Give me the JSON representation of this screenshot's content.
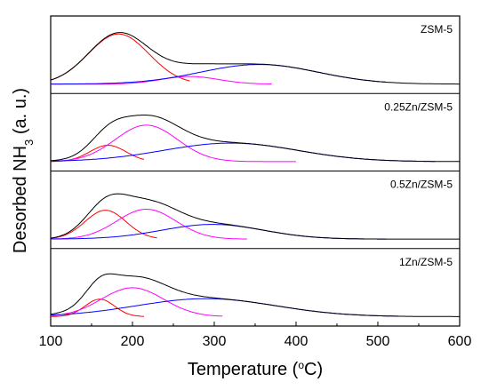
{
  "chart_data": {
    "type": "line",
    "xlabel": "Temperature (°C)",
    "ylabel": "Desorbed NH3 (a. u.)",
    "xlim": [
      100,
      600
    ],
    "xticks": [
      100,
      200,
      300,
      400,
      500,
      600
    ],
    "grid": false,
    "legend": "none",
    "series_colors": {
      "envelope": "#000000",
      "peak_low": "#ff0000",
      "peak_mid": "#ff00ff",
      "peak_high": "#0000ff"
    },
    "panels": [
      {
        "label": "ZSM-5",
        "baseline": 0.01,
        "fit_end": {
          "peak_low": 270,
          "peak_mid": 370,
          "peak_high": 510
        },
        "peaks": [
          {
            "role": "peak_low",
            "center": 183,
            "height": 0.92,
            "width": 37
          },
          {
            "role": "peak_mid",
            "center": 270,
            "height": 0.14,
            "width": 35
          },
          {
            "role": "peak_high",
            "center": 355,
            "height": 0.36,
            "width": 72
          }
        ]
      },
      {
        "label": "0.25Zn/ZSM-5",
        "baseline": 0.01,
        "fit_end": {
          "peak_low": 215,
          "peak_mid": 400,
          "peak_high": 570
        },
        "peaks": [
          {
            "role": "peak_low",
            "center": 170,
            "height": 0.3,
            "width": 22
          },
          {
            "role": "peak_mid",
            "center": 217,
            "height": 0.67,
            "width": 38
          },
          {
            "role": "peak_high",
            "center": 320,
            "height": 0.34,
            "width": 82
          }
        ]
      },
      {
        "label": "0.5Zn/ZSM-5",
        "baseline": 0.01,
        "fit_end": {
          "peak_low": 230,
          "peak_mid": 340,
          "peak_high": 510
        },
        "peaks": [
          {
            "role": "peak_low",
            "center": 167,
            "height": 0.53,
            "width": 25
          },
          {
            "role": "peak_mid",
            "center": 217,
            "height": 0.55,
            "width": 36
          },
          {
            "role": "peak_high",
            "center": 298,
            "height": 0.27,
            "width": 62
          }
        ]
      },
      {
        "label": "1Zn/ZSM-5",
        "baseline": 0.01,
        "fit_end": {
          "peak_low": 215,
          "peak_mid": 310,
          "peak_high": 530
        },
        "peaks": [
          {
            "role": "peak_low",
            "center": 160,
            "height": 0.32,
            "width": 18
          },
          {
            "role": "peak_mid",
            "center": 200,
            "height": 0.53,
            "width": 38
          },
          {
            "role": "peak_high",
            "center": 290,
            "height": 0.33,
            "width": 85
          }
        ]
      }
    ]
  }
}
